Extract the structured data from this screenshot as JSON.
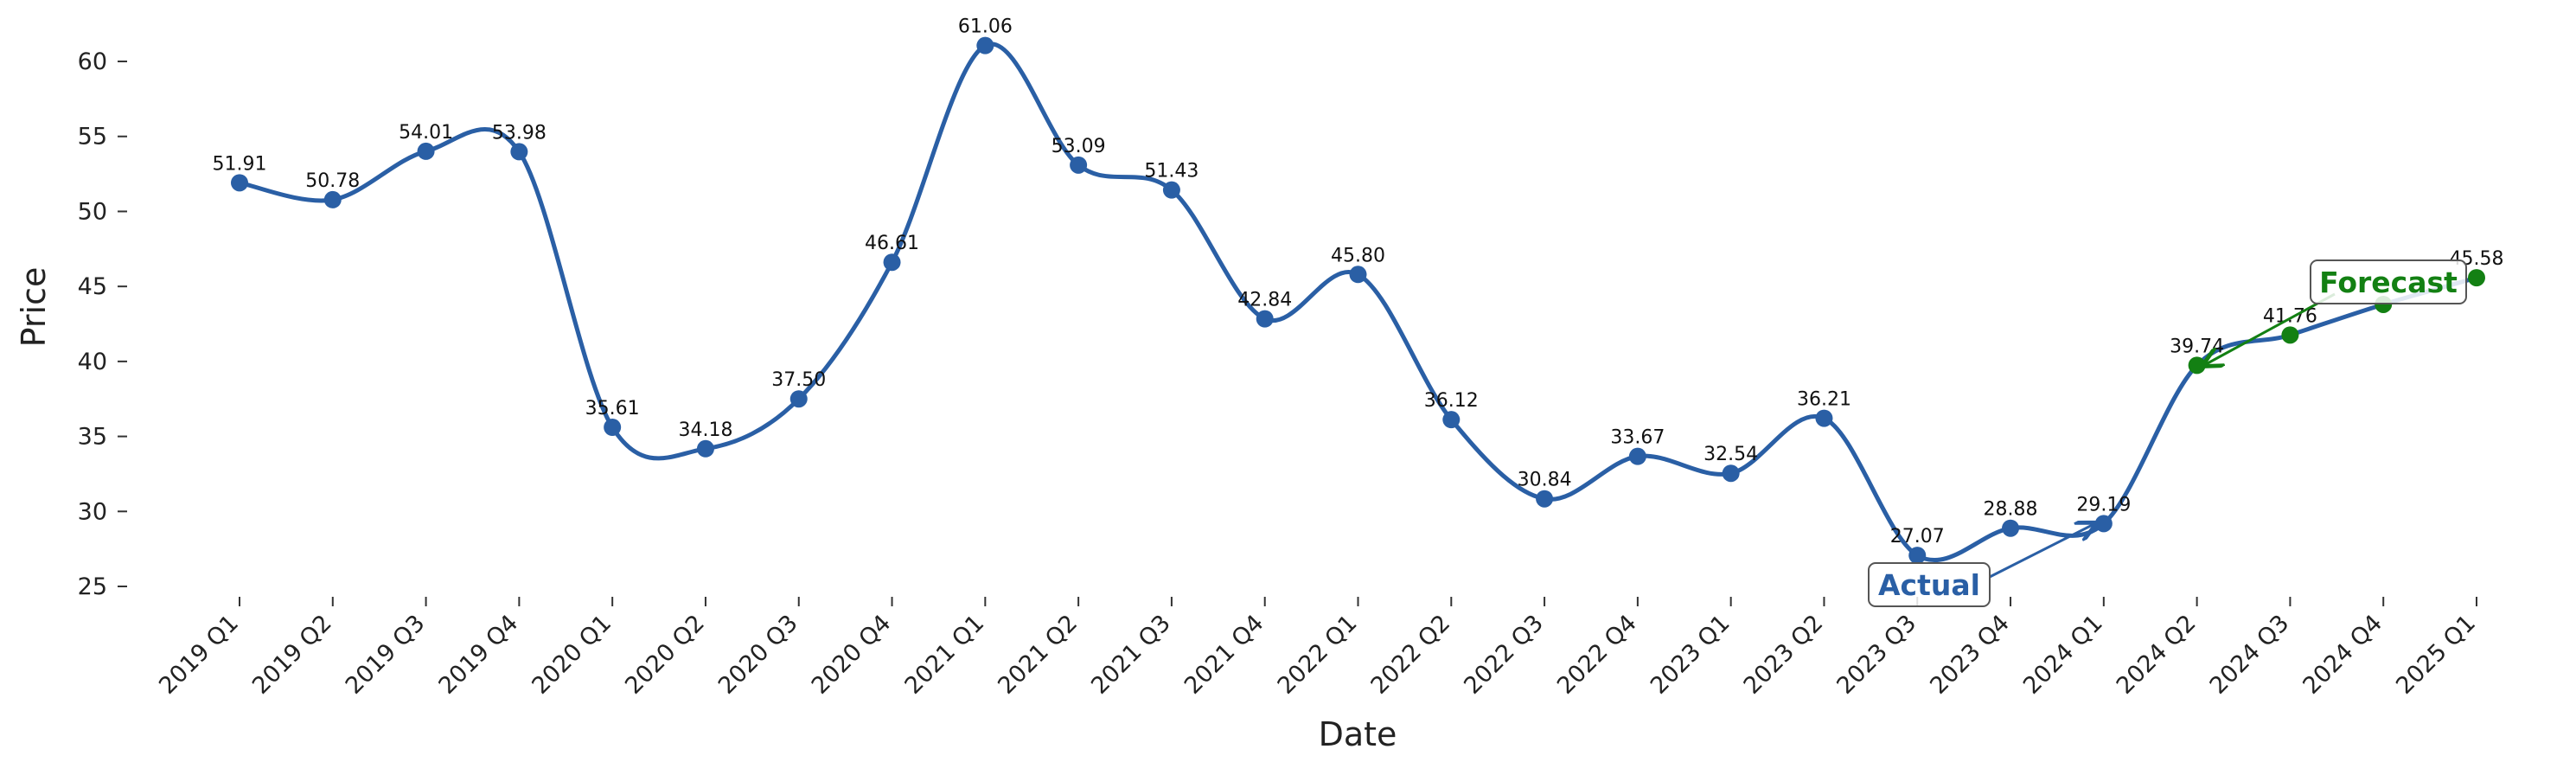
{
  "chart_data": {
    "type": "line",
    "x_label": "Date",
    "y_label": "Price",
    "categories": [
      "2019 Q1",
      "2019 Q2",
      "2019 Q3",
      "2019 Q4",
      "2020 Q1",
      "2020 Q2",
      "2020 Q3",
      "2020 Q4",
      "2021 Q1",
      "2021 Q2",
      "2021 Q3",
      "2021 Q4",
      "2022 Q1",
      "2022 Q2",
      "2022 Q3",
      "2022 Q4",
      "2023 Q1",
      "2023 Q2",
      "2023 Q3",
      "2023 Q4",
      "2024 Q1",
      "2024 Q2",
      "2024 Q3",
      "2024 Q4",
      "2025 Q1"
    ],
    "line_color": "#2a5fa5",
    "series": [
      {
        "name": "Actual",
        "color": "#2a5fa5",
        "values": [
          51.91,
          50.78,
          54.01,
          53.98,
          35.61,
          34.18,
          37.5,
          46.61,
          61.06,
          53.09,
          51.43,
          42.84,
          45.8,
          36.12,
          30.84,
          33.67,
          32.54,
          36.21,
          27.07,
          28.88,
          29.19,
          null,
          null,
          null,
          null
        ],
        "value_labels": [
          "51.91",
          "50.78",
          "54.01",
          "53.98",
          "35.61",
          "34.18",
          "37.50",
          "46.61",
          "61.06",
          "53.09",
          "51.43",
          "42.84",
          "45.80",
          "36.12",
          "30.84",
          "33.67",
          "32.54",
          "36.21",
          "27.07",
          "28.88",
          "29.19",
          null,
          null,
          null,
          null
        ]
      },
      {
        "name": "Forecast",
        "color": "#138013",
        "values": [
          null,
          null,
          null,
          null,
          null,
          null,
          null,
          null,
          null,
          null,
          null,
          null,
          null,
          null,
          null,
          null,
          null,
          null,
          null,
          null,
          null,
          39.74,
          41.76,
          43.8,
          45.58
        ],
        "value_labels": [
          null,
          null,
          null,
          null,
          null,
          null,
          null,
          null,
          null,
          null,
          null,
          null,
          null,
          null,
          null,
          null,
          null,
          null,
          null,
          null,
          null,
          "39.74",
          "41.76",
          null,
          "45.58"
        ]
      }
    ],
    "ylim": [
      25,
      63
    ],
    "yticks": [
      25,
      30,
      35,
      40,
      45,
      50,
      55,
      60
    ],
    "grid": false
  }
}
